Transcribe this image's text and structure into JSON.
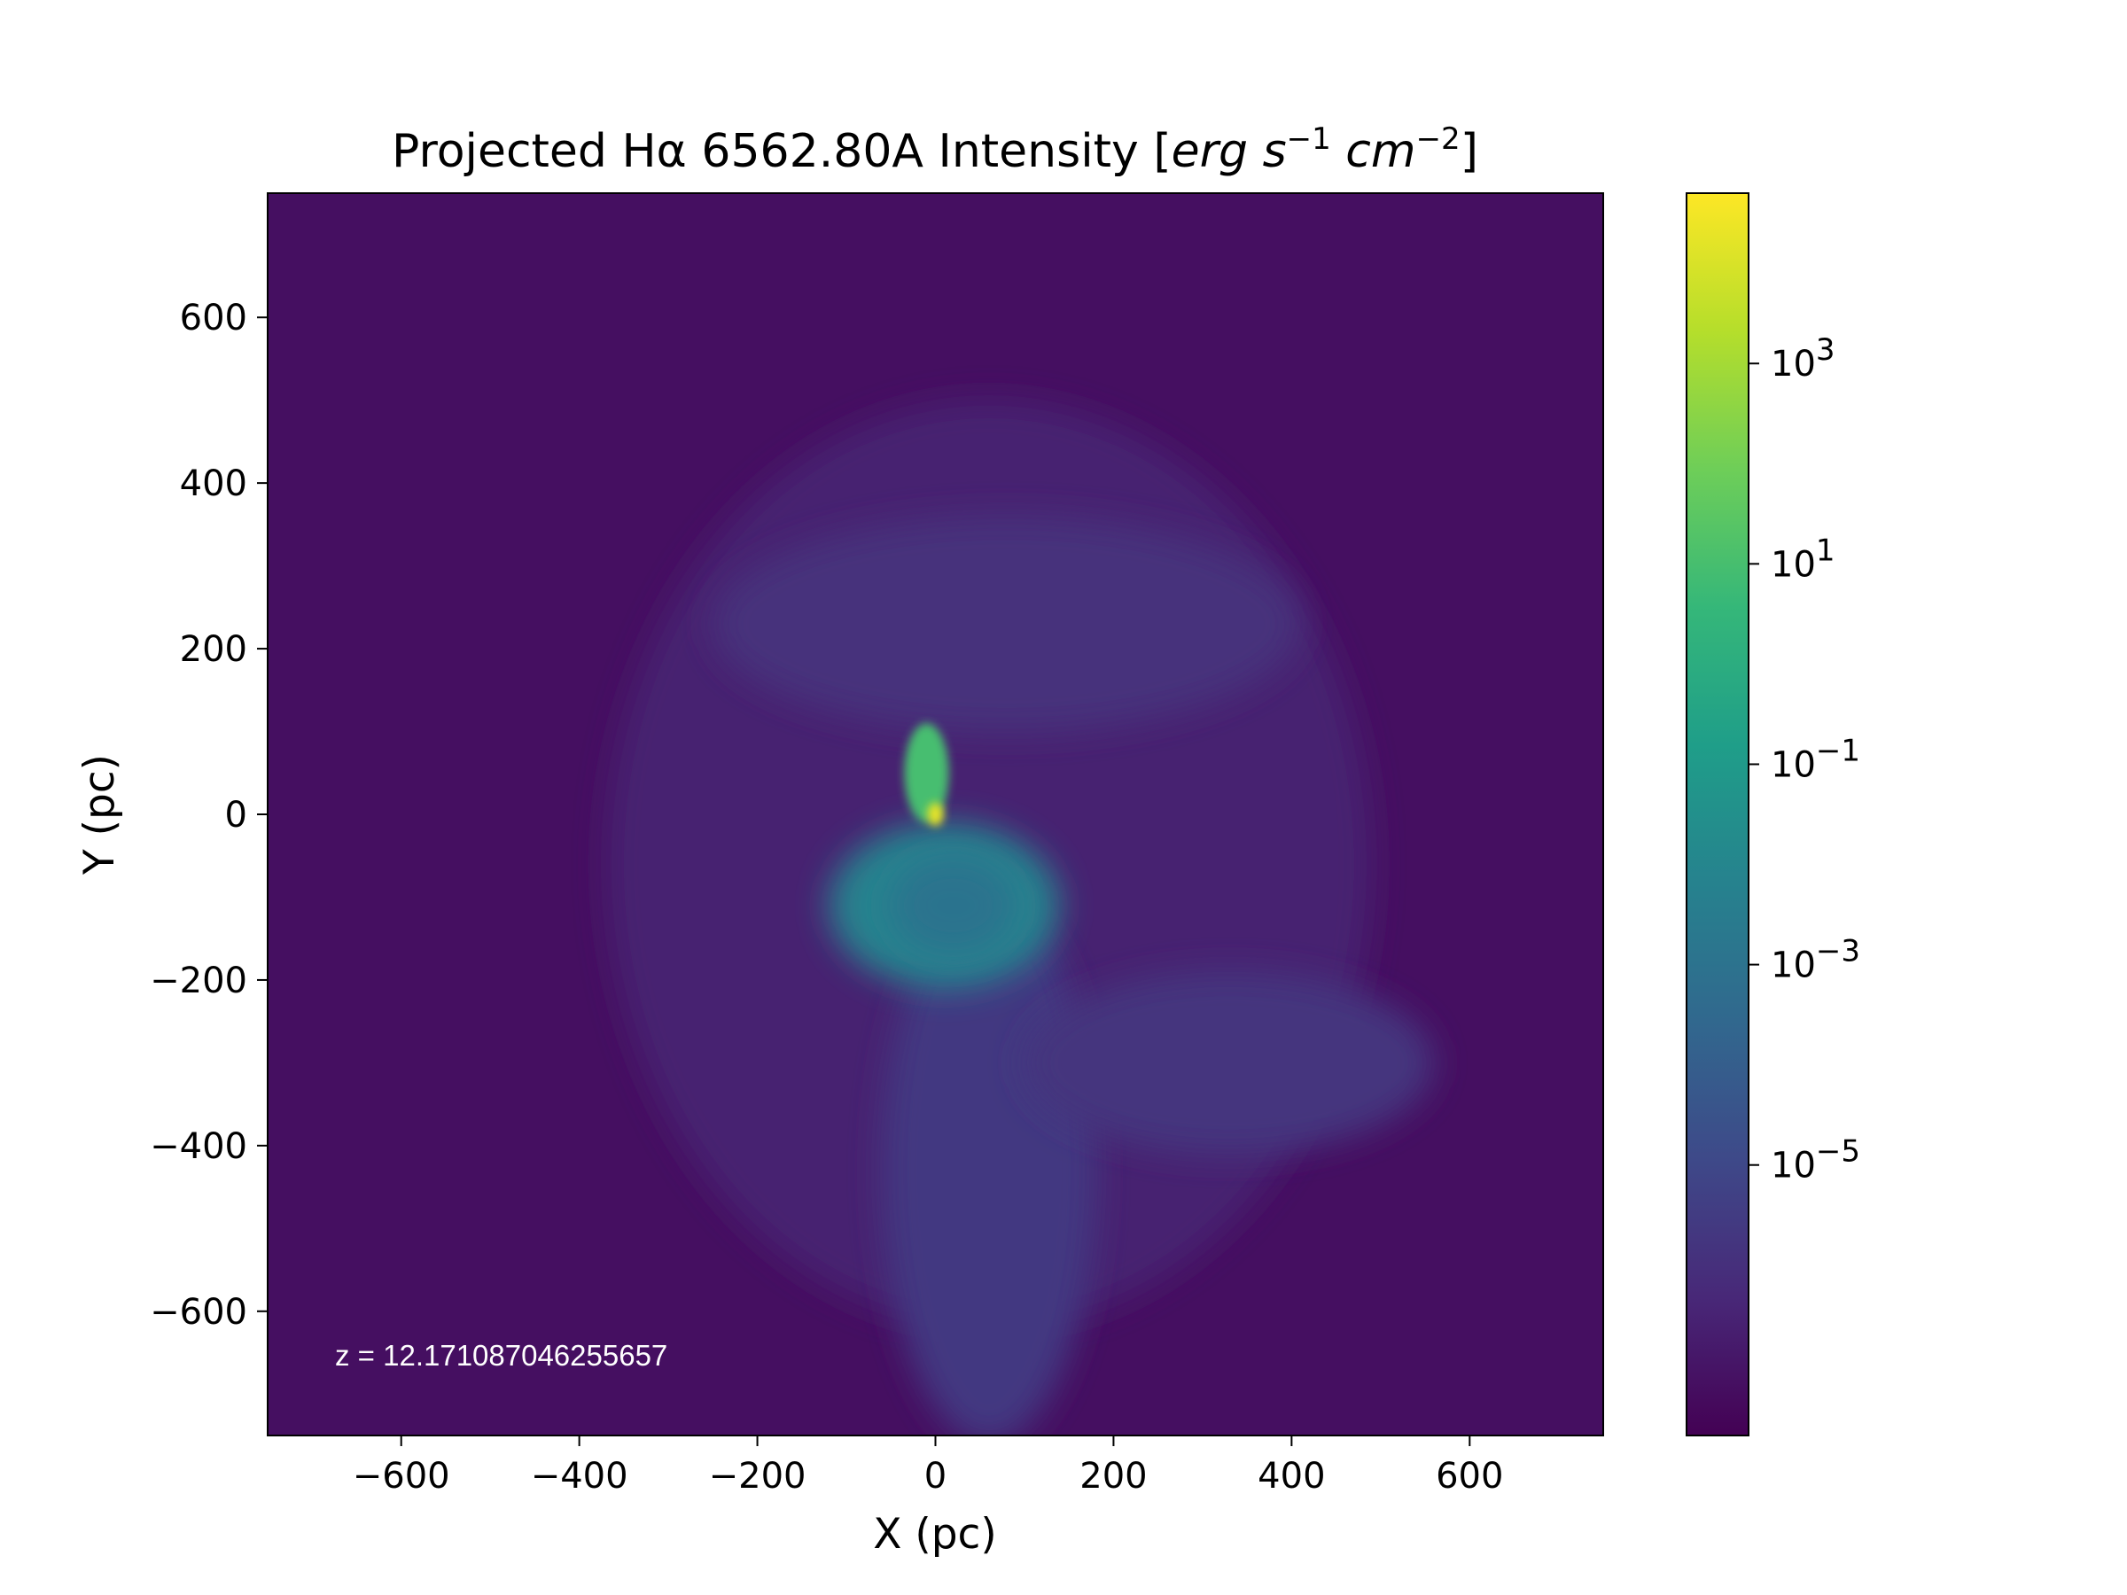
{
  "chart_data": {
    "type": "heatmap",
    "title_prefix": "Projected Hα 6562.80A Intensity [",
    "title_unit_parts": [
      "erg",
      "s",
      "−1",
      "cm",
      "−2"
    ],
    "title_suffix": "]",
    "xlabel": "X (pc)",
    "ylabel": "Y (pc)",
    "xlim": [
      -750,
      750
    ],
    "ylim": [
      -750,
      750
    ],
    "xticks": [
      -600,
      -400,
      -200,
      0,
      200,
      400,
      600
    ],
    "yticks": [
      -600,
      -400,
      -200,
      0,
      200,
      400,
      600
    ],
    "annotation": "z = 12.171087046255657",
    "colormap": "viridis",
    "colorbar": {
      "scale": "log",
      "range_log10": [
        -7.7,
        4.7
      ],
      "ticks": [
        {
          "exp": 3,
          "base": "10",
          "sup": "3"
        },
        {
          "exp": 1,
          "base": "10",
          "sup": "1"
        },
        {
          "exp": -1,
          "base": "10",
          "sup": "−1"
        },
        {
          "exp": -3,
          "base": "10",
          "sup": "−3"
        },
        {
          "exp": -5,
          "base": "10",
          "sup": "−5"
        }
      ]
    },
    "background_log10": -7.2,
    "emission_features_log10": [
      {
        "feature": "diffuse halo",
        "cx": 60,
        "cy": -60,
        "rx": 430,
        "ry": 560,
        "level": -6.6
      },
      {
        "feature": "upper shell",
        "cx": 80,
        "cy": 230,
        "rx": 330,
        "ry": 130,
        "level": -6.0
      },
      {
        "feature": "southern plume",
        "cx": 60,
        "cy": -430,
        "rx": 120,
        "ry": 330,
        "level": -5.6
      },
      {
        "feature": "southeast filament",
        "cx": 330,
        "cy": -300,
        "rx": 230,
        "ry": 110,
        "level": -5.8
      },
      {
        "feature": "inner ring",
        "cx": 10,
        "cy": -110,
        "rx": 130,
        "ry": 100,
        "level": -2.2
      },
      {
        "feature": "ring cavity",
        "cx": 20,
        "cy": -110,
        "rx": 70,
        "ry": 60,
        "level": -3.0
      },
      {
        "feature": "central clump",
        "cx": -10,
        "cy": 50,
        "rx": 25,
        "ry": 60,
        "level": 1.0
      },
      {
        "feature": "bright core",
        "cx": 0,
        "cy": 0,
        "rx": 9,
        "ry": 14,
        "level": 4.3
      }
    ]
  },
  "colors": {
    "viridis_stops": [
      "#440154",
      "#482878",
      "#3e4989",
      "#31688e",
      "#26828e",
      "#1f9e89",
      "#35b779",
      "#6ece58",
      "#b5de2b",
      "#fde725"
    ]
  }
}
